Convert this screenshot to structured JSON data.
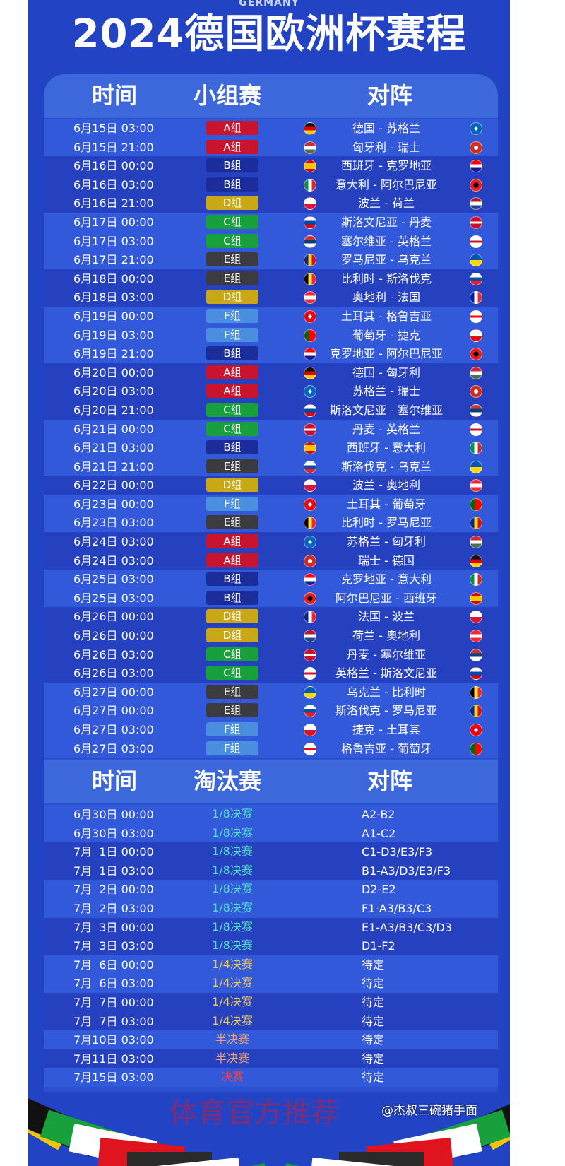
{
  "header": {
    "subtitle": "GERMANY",
    "title": "2024德国欧洲杯赛程"
  },
  "group_table": {
    "headers": [
      "时间",
      "小组赛",
      "对阵"
    ]
  },
  "group_colors": {
    "A": "#c8142c",
    "B": "#1b2d9a",
    "C": "#18a03c",
    "D": "#c9a818",
    "E": "#3b3b40",
    "F": "#4a8ee0"
  },
  "groups": [
    {
      "time": "6月15日 03:00",
      "group": "A组",
      "g": "A",
      "match": "德国 - 苏格兰",
      "flags": [
        "de",
        "sc"
      ]
    },
    {
      "time": "6月15日 21:00",
      "group": "A组",
      "g": "A",
      "match": "匈牙利 - 瑞士",
      "flags": [
        "hu",
        "ch"
      ]
    },
    {
      "time": "6月16日 00:00",
      "group": "B组",
      "g": "B",
      "match": "西班牙 - 克罗地亚",
      "flags": [
        "es",
        "hr"
      ]
    },
    {
      "time": "6月16日 03:00",
      "group": "B组",
      "g": "B",
      "match": "意大利 - 阿尔巴尼亚",
      "flags": [
        "it",
        "al"
      ]
    },
    {
      "time": "6月16日 21:00",
      "group": "D组",
      "g": "D",
      "match": "波兰 - 荷兰",
      "flags": [
        "pl",
        "nl"
      ]
    },
    {
      "time": "6月17日 00:00",
      "group": "C组",
      "g": "C",
      "match": "斯洛文尼亚 - 丹麦",
      "flags": [
        "si",
        "dk"
      ]
    },
    {
      "time": "6月17日 03:00",
      "group": "C组",
      "g": "C",
      "match": "塞尔维亚 - 英格兰",
      "flags": [
        "rs",
        "en"
      ]
    },
    {
      "time": "6月17日 21:00",
      "group": "E组",
      "g": "E",
      "match": "罗马尼亚 - 乌克兰",
      "flags": [
        "ro",
        "ua"
      ]
    },
    {
      "time": "6月18日 00:00",
      "group": "E组",
      "g": "E",
      "match": "比利时 - 斯洛伐克",
      "flags": [
        "be",
        "sk"
      ]
    },
    {
      "time": "6月18日 03:00",
      "group": "D组",
      "g": "D",
      "match": "奥地利 - 法国",
      "flags": [
        "at",
        "fr"
      ]
    },
    {
      "time": "6月19日 00:00",
      "group": "F组",
      "g": "F",
      "match": "土耳其 - 格鲁吉亚",
      "flags": [
        "tr",
        "ge"
      ]
    },
    {
      "time": "6月19日 03:00",
      "group": "F组",
      "g": "F",
      "match": "葡萄牙 - 捷克",
      "flags": [
        "pt",
        "cz"
      ]
    },
    {
      "time": "6月19日 21:00",
      "group": "B组",
      "g": "B",
      "match": "克罗地亚 - 阿尔巴尼亚",
      "flags": [
        "hr",
        "al"
      ]
    },
    {
      "time": "6月20日 00:00",
      "group": "A组",
      "g": "A",
      "match": "德国 - 匈牙利",
      "flags": [
        "de",
        "hu"
      ]
    },
    {
      "time": "6月20日 03:00",
      "group": "A组",
      "g": "A",
      "match": "苏格兰 - 瑞士",
      "flags": [
        "sc",
        "ch"
      ]
    },
    {
      "time": "6月20日 21:00",
      "group": "C组",
      "g": "C",
      "match": "斯洛文尼亚 - 塞尔维亚",
      "flags": [
        "si",
        "rs"
      ]
    },
    {
      "time": "6月21日 00:00",
      "group": "C组",
      "g": "C",
      "match": "丹麦 - 英格兰",
      "flags": [
        "dk",
        "en"
      ]
    },
    {
      "time": "6月21日 03:00",
      "group": "B组",
      "g": "B",
      "match": "西班牙 - 意大利",
      "flags": [
        "es",
        "it"
      ]
    },
    {
      "time": "6月21日 21:00",
      "group": "E组",
      "g": "E",
      "match": "斯洛伐克 - 乌克兰",
      "flags": [
        "sk",
        "ua"
      ]
    },
    {
      "time": "6月22日 00:00",
      "group": "D组",
      "g": "D",
      "match": "波兰 - 奥地利",
      "flags": [
        "pl",
        "at"
      ]
    },
    {
      "time": "6月23日 00:00",
      "group": "F组",
      "g": "F",
      "match": "土耳其 - 葡萄牙",
      "flags": [
        "tr",
        "pt"
      ]
    },
    {
      "time": "6月23日 03:00",
      "group": "E组",
      "g": "E",
      "match": "比利时 - 罗马尼亚",
      "flags": [
        "be",
        "ro"
      ]
    },
    {
      "time": "6月24日 03:00",
      "group": "A组",
      "g": "A",
      "match": "苏格兰 - 匈牙利",
      "flags": [
        "sc",
        "hu"
      ]
    },
    {
      "time": "6月24日 03:00",
      "group": "A组",
      "g": "A",
      "match": "瑞士 - 德国",
      "flags": [
        "ch",
        "de"
      ]
    },
    {
      "time": "6月25日 03:00",
      "group": "B组",
      "g": "B",
      "match": "克罗地亚 - 意大利",
      "flags": [
        "hr",
        "it"
      ]
    },
    {
      "time": "6月25日 03:00",
      "group": "B组",
      "g": "B",
      "match": "阿尔巴尼亚 - 西班牙",
      "flags": [
        "al",
        "es"
      ]
    },
    {
      "time": "6月26日 00:00",
      "group": "D组",
      "g": "D",
      "match": "法国 - 波兰",
      "flags": [
        "fr",
        "pl"
      ]
    },
    {
      "time": "6月26日 00:00",
      "group": "D组",
      "g": "D",
      "match": "荷兰 - 奥地利",
      "flags": [
        "nl",
        "at"
      ]
    },
    {
      "time": "6月26日 03:00",
      "group": "C组",
      "g": "C",
      "match": "丹麦 - 塞尔维亚",
      "flags": [
        "dk",
        "rs"
      ]
    },
    {
      "time": "6月26日 03:00",
      "group": "C组",
      "g": "C",
      "match": "英格兰 - 斯洛文尼亚",
      "flags": [
        "en",
        "si"
      ]
    },
    {
      "time": "6月27日 00:00",
      "group": "E组",
      "g": "E",
      "match": "乌克兰 - 比利时",
      "flags": [
        "ua",
        "be"
      ]
    },
    {
      "time": "6月27日 00:00",
      "group": "E组",
      "g": "E",
      "match": "斯洛伐克 - 罗马尼亚",
      "flags": [
        "sk",
        "ro"
      ]
    },
    {
      "time": "6月27日 03:00",
      "group": "F组",
      "g": "F",
      "match": "捷克 - 土耳其",
      "flags": [
        "cz",
        "tr"
      ]
    },
    {
      "time": "6月27日 03:00",
      "group": "F组",
      "g": "F",
      "match": "格鲁吉亚 - 葡萄牙",
      "flags": [
        "ge",
        "pt"
      ]
    }
  ],
  "knockout_table": {
    "headers": [
      "时间",
      "淘汰赛",
      "对阵"
    ]
  },
  "stage_colors": {
    "1/8决赛": "#4fe0c8",
    "1/4决赛": "#e8c860",
    "半决赛": "#f0a070",
    "决赛": "#ff4040"
  },
  "knockout": [
    {
      "time": "6月30日 00:00",
      "stage": "1/8决赛",
      "match": "A2-B2"
    },
    {
      "time": "6月30日 03:00",
      "stage": "1/8决赛",
      "match": "A1-C2"
    },
    {
      "time": "7月  1日 00:00",
      "stage": "1/8决赛",
      "match": "C1-D3/E3/F3"
    },
    {
      "time": "7月  1日 03:00",
      "stage": "1/8决赛",
      "match": "B1-A3/D3/E3/F3"
    },
    {
      "time": "7月  2日 00:00",
      "stage": "1/8决赛",
      "match": "D2-E2"
    },
    {
      "time": "7月  2日 03:00",
      "stage": "1/8决赛",
      "match": "F1-A3/B3/C3"
    },
    {
      "time": "7月  3日 00:00",
      "stage": "1/8决赛",
      "match": "E1-A3/B3/C3/D3"
    },
    {
      "time": "7月  3日 03:00",
      "stage": "1/8决赛",
      "match": "D1-F2"
    },
    {
      "time": "7月  6日 00:00",
      "stage": "1/4决赛",
      "match": "待定"
    },
    {
      "time": "7月  6日 03:00",
      "stage": "1/4决赛",
      "match": "待定"
    },
    {
      "time": "7月  7日 00:00",
      "stage": "1/4决赛",
      "match": "待定"
    },
    {
      "time": "7月  7日 03:00",
      "stage": "1/4决赛",
      "match": "待定"
    },
    {
      "time": "7月10日 03:00",
      "stage": "半决赛",
      "match": "待定"
    },
    {
      "time": "7月11日 03:00",
      "stage": "半决赛",
      "match": "待定"
    },
    {
      "time": "7月15日 03:00",
      "stage": "决赛",
      "match": "待定"
    }
  ],
  "watermark": "体育官方推荐",
  "credit": "@杰叔三碗猪手面"
}
